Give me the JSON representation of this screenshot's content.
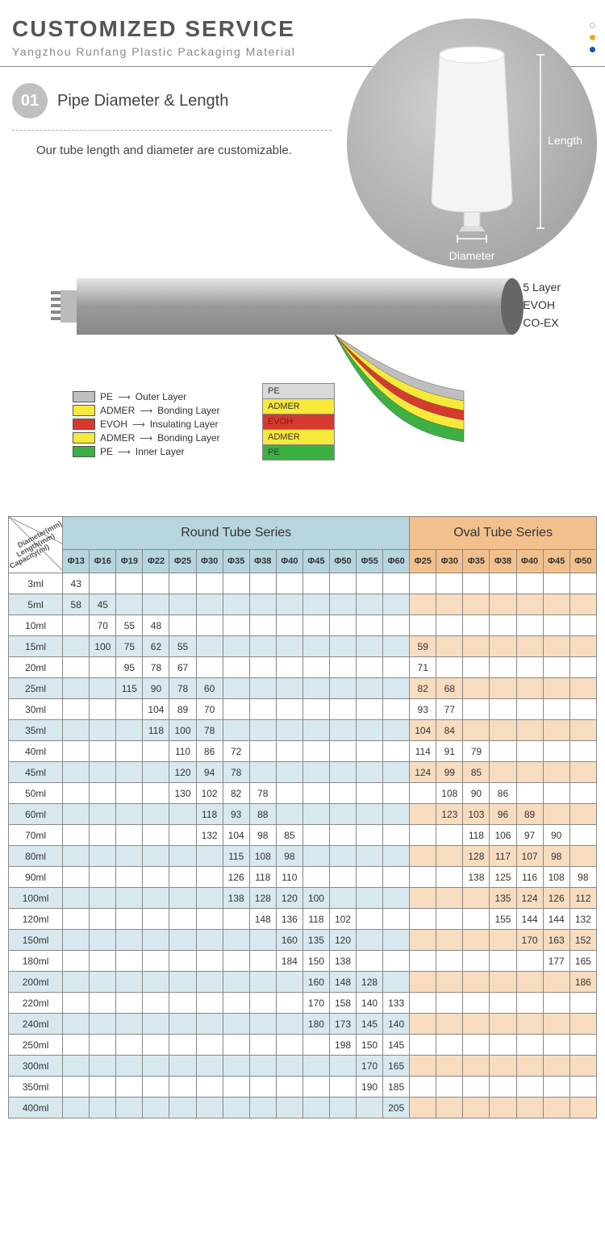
{
  "header": {
    "title": "CUSTOMIZED SERVICE",
    "subtitle": "Yangzhou Runfang Plastic Packaging Material",
    "dots": [
      "#ffffff",
      "#f5a623",
      "#1e4fb3"
    ]
  },
  "section1": {
    "badge": "01",
    "title": "Pipe Diameter & Length",
    "desc": "Our tube length and diameter are customizable.",
    "label_length": "Length",
    "label_diameter": "Diameter"
  },
  "layers": {
    "right_labels": [
      "5 Layer",
      "EVOH",
      "CO-EX"
    ],
    "legend": [
      {
        "color": "#bfbfbf",
        "name": "PE",
        "role": "Outer Layer"
      },
      {
        "color": "#f7e93a",
        "name": "ADMER",
        "role": "Bonding Layer"
      },
      {
        "color": "#d63a2f",
        "name": "EVOH",
        "role": "Insulating Layer"
      },
      {
        "color": "#f7e93a",
        "name": "ADMER",
        "role": "Bonding Layer"
      },
      {
        "color": "#3cb043",
        "name": "PE",
        "role": "Inner Layer"
      }
    ],
    "stack": [
      {
        "name": "PE",
        "bg": "#d9d9d9",
        "fg": "#333"
      },
      {
        "name": "ADMER",
        "bg": "#f7e93a",
        "fg": "#333"
      },
      {
        "name": "EVOH",
        "bg": "#d63a2f",
        "fg": "#7a1b14"
      },
      {
        "name": "ADMER",
        "bg": "#f7e93a",
        "fg": "#333"
      },
      {
        "name": "PE",
        "bg": "#3cb043",
        "fg": "#333"
      }
    ],
    "peel_colors": [
      "#bfbfbf",
      "#f7e93a",
      "#d63a2f",
      "#f7e93a",
      "#3cb043"
    ]
  },
  "table": {
    "corner_labels": [
      "Diameter(mm)",
      "Length(mm)",
      "Capacity(ml)"
    ],
    "round_title": "Round Tube Series",
    "oval_title": "Oval Tube Series",
    "round_cols": [
      "Φ13",
      "Φ16",
      "Φ19",
      "Φ22",
      "Φ25",
      "Φ30",
      "Φ35",
      "Φ38",
      "Φ40",
      "Φ45",
      "Φ50",
      "Φ55",
      "Φ60"
    ],
    "oval_cols": [
      "Φ25",
      "Φ30",
      "Φ35",
      "Φ38",
      "Φ40",
      "Φ45",
      "Φ50"
    ],
    "rows": [
      {
        "cap": "3ml",
        "r": [
          "43",
          "",
          "",
          "",
          "",
          "",
          "",
          "",
          "",
          "",
          "",
          "",
          ""
        ],
        "o": [
          "",
          "",
          "",
          "",
          "",
          "",
          ""
        ]
      },
      {
        "cap": "5ml",
        "r": [
          "58",
          "45",
          "",
          "",
          "",
          "",
          "",
          "",
          "",
          "",
          "",
          "",
          ""
        ],
        "o": [
          "",
          "",
          "",
          "",
          "",
          "",
          ""
        ]
      },
      {
        "cap": "10ml",
        "r": [
          "",
          "70",
          "55",
          "48",
          "",
          "",
          "",
          "",
          "",
          "",
          "",
          "",
          ""
        ],
        "o": [
          "",
          "",
          "",
          "",
          "",
          "",
          ""
        ]
      },
      {
        "cap": "15ml",
        "r": [
          "",
          "100",
          "75",
          "62",
          "55",
          "",
          "",
          "",
          "",
          "",
          "",
          "",
          ""
        ],
        "o": [
          "59",
          "",
          "",
          "",
          "",
          "",
          ""
        ]
      },
      {
        "cap": "20ml",
        "r": [
          "",
          "",
          "95",
          "78",
          "67",
          "",
          "",
          "",
          "",
          "",
          "",
          "",
          ""
        ],
        "o": [
          "71",
          "",
          "",
          "",
          "",
          "",
          ""
        ]
      },
      {
        "cap": "25ml",
        "r": [
          "",
          "",
          "115",
          "90",
          "78",
          "60",
          "",
          "",
          "",
          "",
          "",
          "",
          ""
        ],
        "o": [
          "82",
          "68",
          "",
          "",
          "",
          "",
          ""
        ]
      },
      {
        "cap": "30ml",
        "r": [
          "",
          "",
          "",
          "104",
          "89",
          "70",
          "",
          "",
          "",
          "",
          "",
          "",
          ""
        ],
        "o": [
          "93",
          "77",
          "",
          "",
          "",
          "",
          ""
        ]
      },
      {
        "cap": "35ml",
        "r": [
          "",
          "",
          "",
          "118",
          "100",
          "78",
          "",
          "",
          "",
          "",
          "",
          "",
          ""
        ],
        "o": [
          "104",
          "84",
          "",
          "",
          "",
          "",
          ""
        ]
      },
      {
        "cap": "40ml",
        "r": [
          "",
          "",
          "",
          "",
          "110",
          "86",
          "72",
          "",
          "",
          "",
          "",
          "",
          ""
        ],
        "o": [
          "114",
          "91",
          "79",
          "",
          "",
          "",
          ""
        ]
      },
      {
        "cap": "45ml",
        "r": [
          "",
          "",
          "",
          "",
          "120",
          "94",
          "78",
          "",
          "",
          "",
          "",
          "",
          ""
        ],
        "o": [
          "124",
          "99",
          "85",
          "",
          "",
          "",
          ""
        ]
      },
      {
        "cap": "50ml",
        "r": [
          "",
          "",
          "",
          "",
          "130",
          "102",
          "82",
          "78",
          "",
          "",
          "",
          "",
          ""
        ],
        "o": [
          "",
          "108",
          "90",
          "86",
          "",
          "",
          ""
        ]
      },
      {
        "cap": "60ml",
        "r": [
          "",
          "",
          "",
          "",
          "",
          "118",
          "93",
          "88",
          "",
          "",
          "",
          "",
          ""
        ],
        "o": [
          "",
          "123",
          "103",
          "96",
          "89",
          "",
          ""
        ]
      },
      {
        "cap": "70ml",
        "r": [
          "",
          "",
          "",
          "",
          "",
          "132",
          "104",
          "98",
          "85",
          "",
          "",
          "",
          ""
        ],
        "o": [
          "",
          "",
          "118",
          "106",
          "97",
          "90",
          ""
        ]
      },
      {
        "cap": "80ml",
        "r": [
          "",
          "",
          "",
          "",
          "",
          "",
          "115",
          "108",
          "98",
          "",
          "",
          "",
          ""
        ],
        "o": [
          "",
          "",
          "128",
          "117",
          "107",
          "98",
          ""
        ]
      },
      {
        "cap": "90ml",
        "r": [
          "",
          "",
          "",
          "",
          "",
          "",
          "126",
          "118",
          "110",
          "",
          "",
          "",
          ""
        ],
        "o": [
          "",
          "",
          "138",
          "125",
          "116",
          "108",
          "98"
        ]
      },
      {
        "cap": "100ml",
        "r": [
          "",
          "",
          "",
          "",
          "",
          "",
          "138",
          "128",
          "120",
          "100",
          "",
          "",
          ""
        ],
        "o": [
          "",
          "",
          "",
          "135",
          "124",
          "126",
          "112"
        ]
      },
      {
        "cap": "120ml",
        "r": [
          "",
          "",
          "",
          "",
          "",
          "",
          "",
          "148",
          "136",
          "118",
          "102",
          "",
          ""
        ],
        "o": [
          "",
          "",
          "",
          "155",
          "144",
          "144",
          "132"
        ]
      },
      {
        "cap": "150ml",
        "r": [
          "",
          "",
          "",
          "",
          "",
          "",
          "",
          "",
          "160",
          "135",
          "120",
          "",
          ""
        ],
        "o": [
          "",
          "",
          "",
          "",
          "170",
          "163",
          "152"
        ]
      },
      {
        "cap": "180ml",
        "r": [
          "",
          "",
          "",
          "",
          "",
          "",
          "",
          "",
          "184",
          "150",
          "138",
          "",
          ""
        ],
        "o": [
          "",
          "",
          "",
          "",
          "",
          "177",
          "165"
        ]
      },
      {
        "cap": "200ml",
        "r": [
          "",
          "",
          "",
          "",
          "",
          "",
          "",
          "",
          "",
          "160",
          "148",
          "128",
          ""
        ],
        "o": [
          "",
          "",
          "",
          "",
          "",
          "",
          "186"
        ]
      },
      {
        "cap": "220ml",
        "r": [
          "",
          "",
          "",
          "",
          "",
          "",
          "",
          "",
          "",
          "170",
          "158",
          "140",
          "133"
        ],
        "o": [
          "",
          "",
          "",
          "",
          "",
          "",
          ""
        ]
      },
      {
        "cap": "240ml",
        "r": [
          "",
          "",
          "",
          "",
          "",
          "",
          "",
          "",
          "",
          "180",
          "173",
          "145",
          "140"
        ],
        "o": [
          "",
          "",
          "",
          "",
          "",
          "",
          ""
        ]
      },
      {
        "cap": "250ml",
        "r": [
          "",
          "",
          "",
          "",
          "",
          "",
          "",
          "",
          "",
          "",
          "198",
          "150",
          "145"
        ],
        "o": [
          "",
          "",
          "",
          "",
          "",
          "",
          ""
        ]
      },
      {
        "cap": "300ml",
        "r": [
          "",
          "",
          "",
          "",
          "",
          "",
          "",
          "",
          "",
          "",
          "",
          "170",
          "165"
        ],
        "o": [
          "",
          "",
          "",
          "",
          "",
          "",
          ""
        ]
      },
      {
        "cap": "350ml",
        "r": [
          "",
          "",
          "",
          "",
          "",
          "",
          "",
          "",
          "",
          "",
          "",
          "190",
          "185"
        ],
        "o": [
          "",
          "",
          "",
          "",
          "",
          "",
          ""
        ]
      },
      {
        "cap": "400ml",
        "r": [
          "",
          "",
          "",
          "",
          "",
          "",
          "",
          "",
          "",
          "",
          "",
          "",
          "205"
        ],
        "o": [
          "",
          "",
          "",
          "",
          "",
          "",
          ""
        ]
      }
    ],
    "colors": {
      "round_header": "#b7d5de",
      "oval_header": "#f2c08c",
      "round_even": "#d7e9ef",
      "oval_even": "#f7dcc0"
    }
  }
}
